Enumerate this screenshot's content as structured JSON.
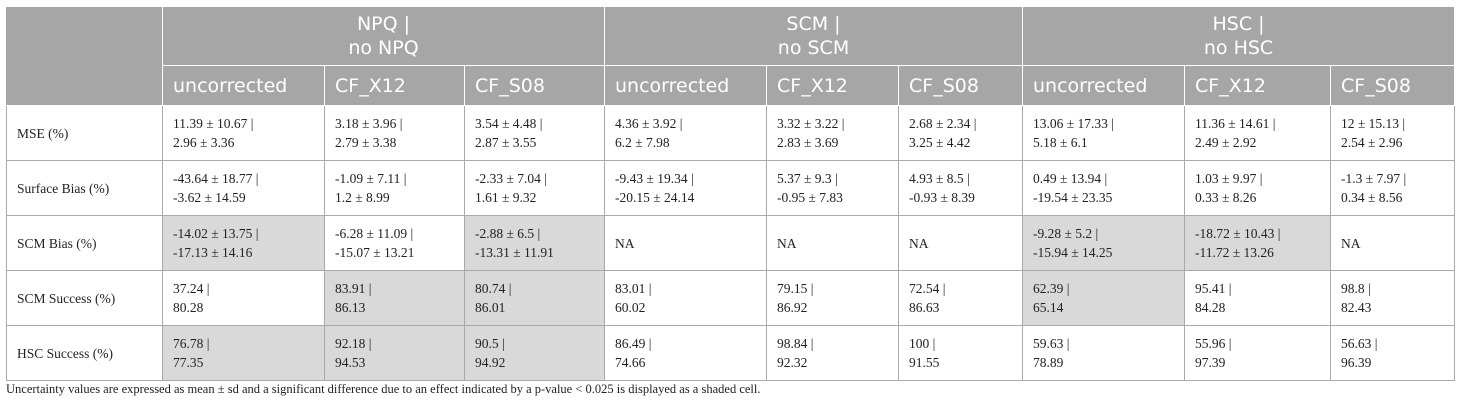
{
  "header": {
    "groups": [
      {
        "line1": "NPQ |",
        "line2": "no NPQ"
      },
      {
        "line1": "SCM |",
        "line2": "no SCM"
      },
      {
        "line1": "HSC |",
        "line2": "no HSC"
      }
    ],
    "subheaders": [
      "uncorrected",
      "CF_X12",
      "CF_S08",
      "uncorrected",
      "CF_X12",
      "CF_S08",
      "uncorrected",
      "CF_X12",
      "CF_S08"
    ]
  },
  "rows": [
    {
      "label": "MSE (%)",
      "cells": [
        {
          "l1": "11.39 ± 10.67 |",
          "l2": "2.96 ± 3.36",
          "shaded": false
        },
        {
          "l1": "3.18 ± 3.96 |",
          "l2": "2.79 ± 3.38",
          "shaded": false
        },
        {
          "l1": "3.54 ± 4.48 |",
          "l2": "2.87 ± 3.55",
          "shaded": false
        },
        {
          "l1": "4.36 ± 3.92 |",
          "l2": "6.2 ± 7.98",
          "shaded": false
        },
        {
          "l1": "3.32 ± 3.22 |",
          "l2": "2.83 ± 3.69",
          "shaded": false
        },
        {
          "l1": "2.68 ± 2.34 |",
          "l2": "3.25 ± 4.42",
          "shaded": false
        },
        {
          "l1": "13.06 ± 17.33 |",
          "l2": "5.18 ± 6.1",
          "shaded": false
        },
        {
          "l1": "11.36 ± 14.61 |",
          "l2": "2.49 ± 2.92",
          "shaded": false
        },
        {
          "l1": "12 ± 15.13 |",
          "l2": "2.54 ± 2.96",
          "shaded": false
        }
      ]
    },
    {
      "label": "Surface Bias (%)",
      "cells": [
        {
          "l1": "-43.64 ± 18.77 |",
          "l2": "-3.62 ± 14.59",
          "shaded": false
        },
        {
          "l1": "-1.09 ± 7.11 |",
          "l2": "1.2 ± 8.99",
          "shaded": false
        },
        {
          "l1": "-2.33 ± 7.04 |",
          "l2": "1.61 ± 9.32",
          "shaded": false
        },
        {
          "l1": "-9.43 ± 19.34 |",
          "l2": "-20.15 ± 24.14",
          "shaded": false
        },
        {
          "l1": "5.37 ± 9.3 |",
          "l2": "-0.95 ± 7.83",
          "shaded": false
        },
        {
          "l1": "4.93 ± 8.5 |",
          "l2": "-0.93 ± 8.39",
          "shaded": false
        },
        {
          "l1": "0.49 ± 13.94 |",
          "l2": "-19.54 ± 23.35",
          "shaded": false
        },
        {
          "l1": "1.03 ± 9.97 |",
          "l2": "0.33 ± 8.26",
          "shaded": false
        },
        {
          "l1": "-1.3 ± 7.97 |",
          "l2": "0.34 ± 8.56",
          "shaded": false
        }
      ]
    },
    {
      "label": "SCM Bias (%)",
      "cells": [
        {
          "l1": "-14.02 ± 13.75 |",
          "l2": "-17.13 ± 14.16",
          "shaded": true
        },
        {
          "l1": "-6.28 ± 11.09 |",
          "l2": "-15.07 ± 13.21",
          "shaded": false
        },
        {
          "l1": "-2.88 ± 6.5 |",
          "l2": "-13.31 ± 11.91",
          "shaded": true
        },
        {
          "l1": "NA",
          "l2": "",
          "shaded": false
        },
        {
          "l1": "NA",
          "l2": "",
          "shaded": false
        },
        {
          "l1": "NA",
          "l2": "",
          "shaded": false
        },
        {
          "l1": "-9.28 ± 5.2 |",
          "l2": "-15.94 ± 14.25",
          "shaded": true
        },
        {
          "l1": "-18.72 ± 10.43 |",
          "l2": "-11.72 ± 13.26",
          "shaded": true
        },
        {
          "l1": "NA",
          "l2": "",
          "shaded": false
        }
      ]
    },
    {
      "label": "SCM Success (%)",
      "cells": [
        {
          "l1": "37.24 |",
          "l2": "80.28",
          "shaded": false
        },
        {
          "l1": "83.91 |",
          "l2": "86.13",
          "shaded": true
        },
        {
          "l1": "80.74 |",
          "l2": "86.01",
          "shaded": true
        },
        {
          "l1": "83.01 |",
          "l2": "60.02",
          "shaded": false
        },
        {
          "l1": "79.15 |",
          "l2": "86.92",
          "shaded": false
        },
        {
          "l1": "72.54 |",
          "l2": "86.63",
          "shaded": false
        },
        {
          "l1": "62.39 |",
          "l2": "65.14",
          "shaded": true
        },
        {
          "l1": "95.41 |",
          "l2": "84.28",
          "shaded": false
        },
        {
          "l1": "98.8 |",
          "l2": "82.43",
          "shaded": false
        }
      ]
    },
    {
      "label": "HSC Success (%)",
      "cells": [
        {
          "l1": "76.78 |",
          "l2": "77.35",
          "shaded": true
        },
        {
          "l1": "92.18 |",
          "l2": "94.53",
          "shaded": true
        },
        {
          "l1": "90.5 |",
          "l2": "94.92",
          "shaded": true
        },
        {
          "l1": "86.49 |",
          "l2": "74.66",
          "shaded": false
        },
        {
          "l1": "98.84 |",
          "l2": "92.32",
          "shaded": false
        },
        {
          "l1": "100 |",
          "l2": "91.55",
          "shaded": false
        },
        {
          "l1": "59.63 |",
          "l2": "78.89",
          "shaded": false
        },
        {
          "l1": "55.96 |",
          "l2": "97.39",
          "shaded": false
        },
        {
          "l1": "56.63 |",
          "l2": "96.39",
          "shaded": false
        }
      ]
    }
  ],
  "footnote": "Uncertainty values are expressed as mean ± sd and a significant difference due to an effect indicated by a p-value < 0.025 is displayed as a shaded cell.",
  "colors": {
    "header_bg": "#a6a6a6",
    "shaded_cell": "#d9d9d9",
    "border": "#a9a9a9"
  }
}
